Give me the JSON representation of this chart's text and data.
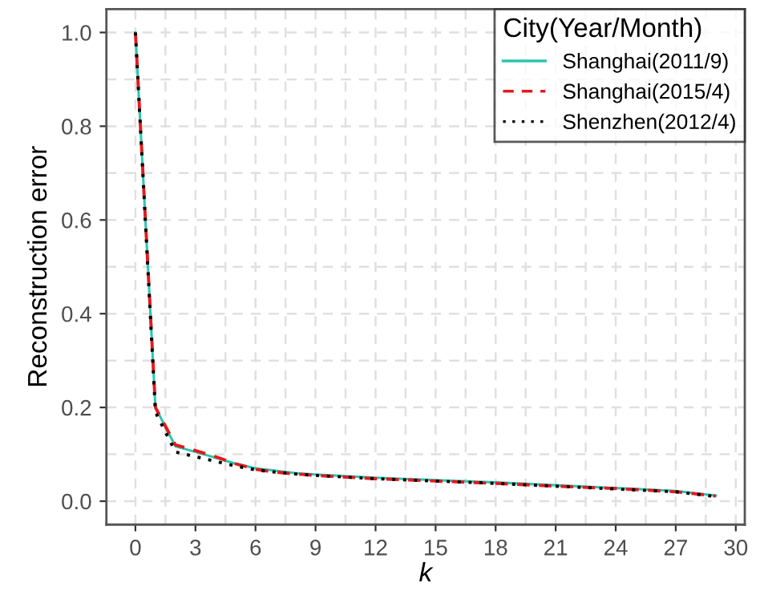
{
  "chart_data": {
    "type": "line",
    "xlabel": "k",
    "ylabel": "Reconstruction error",
    "legend_title": "City(Year/Month)",
    "x": [
      0,
      1,
      2,
      3,
      4,
      5,
      6,
      7,
      8,
      9,
      12,
      15,
      18,
      21,
      24,
      27,
      29
    ],
    "series": [
      {
        "name": "Shanghai(2011/9)",
        "color": "#2ec4b0",
        "line_style": "solid",
        "values": [
          1.0,
          0.2,
          0.117,
          0.105,
          0.093,
          0.08,
          0.07,
          0.065,
          0.06,
          0.057,
          0.05,
          0.045,
          0.04,
          0.034,
          0.028,
          0.022,
          0.012
        ]
      },
      {
        "name": "Shanghai(2015/4)",
        "color": "#e41a1c",
        "line_style": "dashed",
        "values": [
          1.0,
          0.2,
          0.12,
          0.108,
          0.095,
          0.08,
          0.068,
          0.062,
          0.058,
          0.055,
          0.048,
          0.043,
          0.038,
          0.032,
          0.027,
          0.02,
          0.011
        ]
      },
      {
        "name": "Shenzhen(2012/4)",
        "color": "#000000",
        "line_style": "dotted",
        "values": [
          1.0,
          0.19,
          0.105,
          0.095,
          0.085,
          0.075,
          0.067,
          0.062,
          0.058,
          0.055,
          0.048,
          0.043,
          0.038,
          0.032,
          0.026,
          0.02,
          0.01
        ]
      }
    ],
    "xlim": [
      -1.45,
      30.45
    ],
    "ylim": [
      -0.05,
      1.05
    ],
    "xticks": [
      0,
      3,
      6,
      9,
      12,
      15,
      18,
      21,
      24,
      27,
      30
    ],
    "yticks": [
      {
        "value": 0,
        "label": "0.0"
      },
      0.2,
      0.4,
      0.6,
      0.8,
      {
        "value": 1,
        "label": "1.0"
      }
    ],
    "grid": true,
    "legend": "top right",
    "marker": "none"
  }
}
